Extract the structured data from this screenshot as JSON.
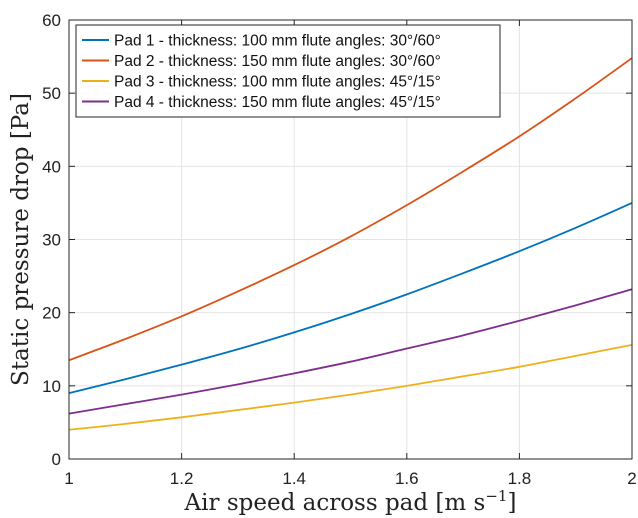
{
  "chart_data": {
    "type": "line",
    "title": "",
    "xlabel": "Air speed across pad [m s",
    "xlabel_sup": "−1",
    "xlabel_end": "]",
    "ylabel": "Static pressure drop [Pa]",
    "xlim": [
      1,
      2
    ],
    "ylim": [
      0,
      60
    ],
    "xticks": [
      1,
      1.2,
      1.4,
      1.6,
      1.8,
      2
    ],
    "xtick_labels": [
      "1",
      "1.2",
      "1.4",
      "1.6",
      "1.8",
      "2"
    ],
    "yticks": [
      0,
      10,
      20,
      30,
      40,
      50,
      60
    ],
    "ytick_labels": [
      "0",
      "10",
      "20",
      "30",
      "40",
      "50",
      "60"
    ],
    "grid": true,
    "legend_position": "top-left",
    "x": [
      1.0,
      1.1,
      1.2,
      1.3,
      1.4,
      1.5,
      1.6,
      1.7,
      1.8,
      1.9,
      2.0
    ],
    "series": [
      {
        "name": "Pad 1 - thickness: 100 mm flute angles: 30°/60°",
        "color": "#0072BD",
        "values": [
          9.0,
          10.9,
          12.9,
          15.0,
          17.3,
          19.8,
          22.5,
          25.4,
          28.4,
          31.6,
          35.0
        ]
      },
      {
        "name": "Pad 2 - thickness: 150 mm flute angles: 30°/60°",
        "color": "#D95319",
        "values": [
          13.5,
          16.4,
          19.5,
          22.9,
          26.5,
          30.4,
          34.7,
          39.3,
          44.1,
          49.3,
          54.8
        ]
      },
      {
        "name": "Pad 3 - thickness: 100 mm flute angles: 45°/15°",
        "color": "#EDB120",
        "values": [
          4.0,
          4.8,
          5.7,
          6.7,
          7.7,
          8.8,
          10.0,
          11.3,
          12.6,
          14.1,
          15.6
        ]
      },
      {
        "name": "Pad 4 - thickness: 150 mm flute angles: 45°/15°",
        "color": "#7E2F8E",
        "values": [
          6.2,
          7.5,
          8.8,
          10.2,
          11.7,
          13.3,
          15.1,
          16.9,
          18.9,
          21.0,
          23.2
        ]
      }
    ]
  }
}
